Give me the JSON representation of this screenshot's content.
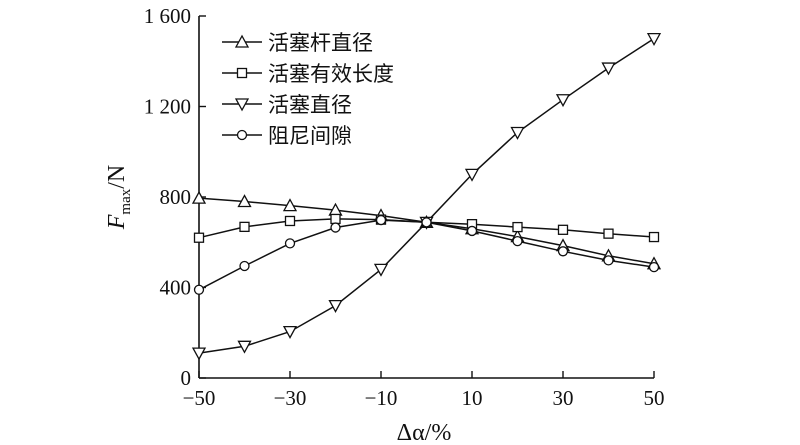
{
  "chart_data": {
    "type": "line",
    "xlabel": "Δα/%",
    "ylabel": "F_max/N",
    "xlim": [
      -50,
      50
    ],
    "ylim": [
      0,
      1600
    ],
    "xticks": [
      -50,
      -30,
      -10,
      10,
      30,
      50
    ],
    "xtick_labels": [
      "−50",
      "−30",
      "−10",
      "10",
      "30",
      "50"
    ],
    "yticks": [
      0,
      400,
      800,
      1200,
      1600
    ],
    "ytick_labels": [
      "0",
      "400",
      "800",
      "1 200",
      "1 600"
    ],
    "legend_position": "top-left",
    "grid": false,
    "x": [
      -50,
      -40,
      -30,
      -20,
      -10,
      0,
      10,
      20,
      30,
      40,
      50
    ],
    "series": [
      {
        "name": "活塞杆直径",
        "marker": "triangle-up",
        "values": [
          795,
          780,
          762,
          742,
          718,
          688,
          660,
          625,
          585,
          540,
          505
        ]
      },
      {
        "name": "活塞有效长度",
        "marker": "square",
        "values": [
          620,
          668,
          694,
          703,
          700,
          688,
          680,
          667,
          655,
          638,
          623
        ]
      },
      {
        "name": "活塞直径",
        "marker": "triangle-down",
        "values": [
          110,
          140,
          205,
          320,
          480,
          688,
          900,
          1085,
          1230,
          1370,
          1500
        ]
      },
      {
        "name": "阻尼间隙",
        "marker": "circle",
        "values": [
          390,
          495,
          595,
          665,
          698,
          688,
          650,
          605,
          560,
          520,
          490
        ]
      }
    ]
  }
}
